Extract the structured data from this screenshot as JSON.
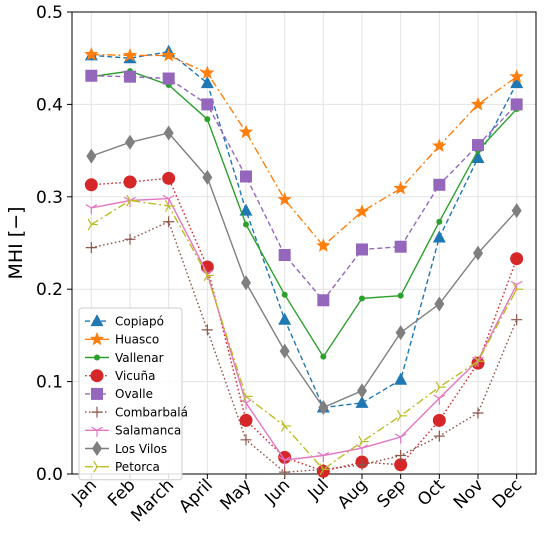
{
  "chart_data": {
    "type": "line",
    "xlabel": "",
    "ylabel": "MHI [−]",
    "ylim": [
      0,
      0.5
    ],
    "yticks": [
      "0.0",
      "0.1",
      "0.2",
      "0.3",
      "0.4",
      "0.5"
    ],
    "categories": [
      "Jan",
      "Feb",
      "March",
      "April",
      "May",
      "Jun",
      "Jul",
      "Aug",
      "Sep",
      "Oct",
      "Nov",
      "Dec"
    ],
    "grid": true,
    "legend_position": "lower-left",
    "series": [
      {
        "name": "Copiapó",
        "color": "#1f77b4",
        "marker": "triangle",
        "dash": "dashed",
        "values": [
          0.453,
          0.45,
          0.457,
          0.423,
          0.285,
          0.167,
          0.072,
          0.077,
          0.102,
          0.256,
          0.342,
          0.423
        ]
      },
      {
        "name": "Huasco",
        "color": "#ff7f0e",
        "marker": "star",
        "dash": "dashdot",
        "values": [
          0.454,
          0.453,
          0.453,
          0.434,
          0.37,
          0.297,
          0.247,
          0.284,
          0.309,
          0.355,
          0.4,
          0.43
        ]
      },
      {
        "name": "Vallenar",
        "color": "#2ca02c",
        "marker": "dot",
        "dash": "solid",
        "values": [
          0.43,
          0.436,
          0.421,
          0.384,
          0.27,
          0.194,
          0.127,
          0.19,
          0.193,
          0.273,
          0.35,
          0.395
        ]
      },
      {
        "name": "Vicuña",
        "color": "#d62728",
        "marker": "circle",
        "dash": "dotted",
        "values": [
          0.313,
          0.316,
          0.32,
          0.224,
          0.058,
          0.018,
          0.003,
          0.013,
          0.01,
          0.058,
          0.12,
          0.233
        ]
      },
      {
        "name": "Ovalle",
        "color": "#9467bd",
        "marker": "square",
        "dash": "dashed",
        "values": [
          0.431,
          0.43,
          0.428,
          0.4,
          0.322,
          0.237,
          0.188,
          0.243,
          0.246,
          0.313,
          0.356,
          0.4
        ]
      },
      {
        "name": "Combarbalá",
        "color": "#8c564b",
        "marker": "plus",
        "dash": "dotted",
        "values": [
          0.245,
          0.254,
          0.273,
          0.156,
          0.037,
          0.002,
          0.005,
          0.01,
          0.02,
          0.041,
          0.066,
          0.167
        ]
      },
      {
        "name": "Salamanca",
        "color": "#e377c2",
        "marker": "tri_down",
        "dash": "solid",
        "values": [
          0.288,
          0.296,
          0.298,
          0.217,
          0.077,
          0.015,
          0.02,
          0.028,
          0.04,
          0.082,
          0.123,
          0.205
        ]
      },
      {
        "name": "Los Vilos",
        "color": "#7f7f7f",
        "marker": "diamond",
        "dash": "solid",
        "values": [
          0.344,
          0.359,
          0.369,
          0.321,
          0.207,
          0.133,
          0.072,
          0.09,
          0.153,
          0.184,
          0.239,
          0.285
        ]
      },
      {
        "name": "Petorca",
        "color": "#bcbd22",
        "marker": "tri_right",
        "dash": "dashdot",
        "values": [
          0.27,
          0.296,
          0.29,
          0.215,
          0.084,
          0.052,
          0.005,
          0.035,
          0.063,
          0.094,
          0.122,
          0.2
        ]
      }
    ]
  }
}
